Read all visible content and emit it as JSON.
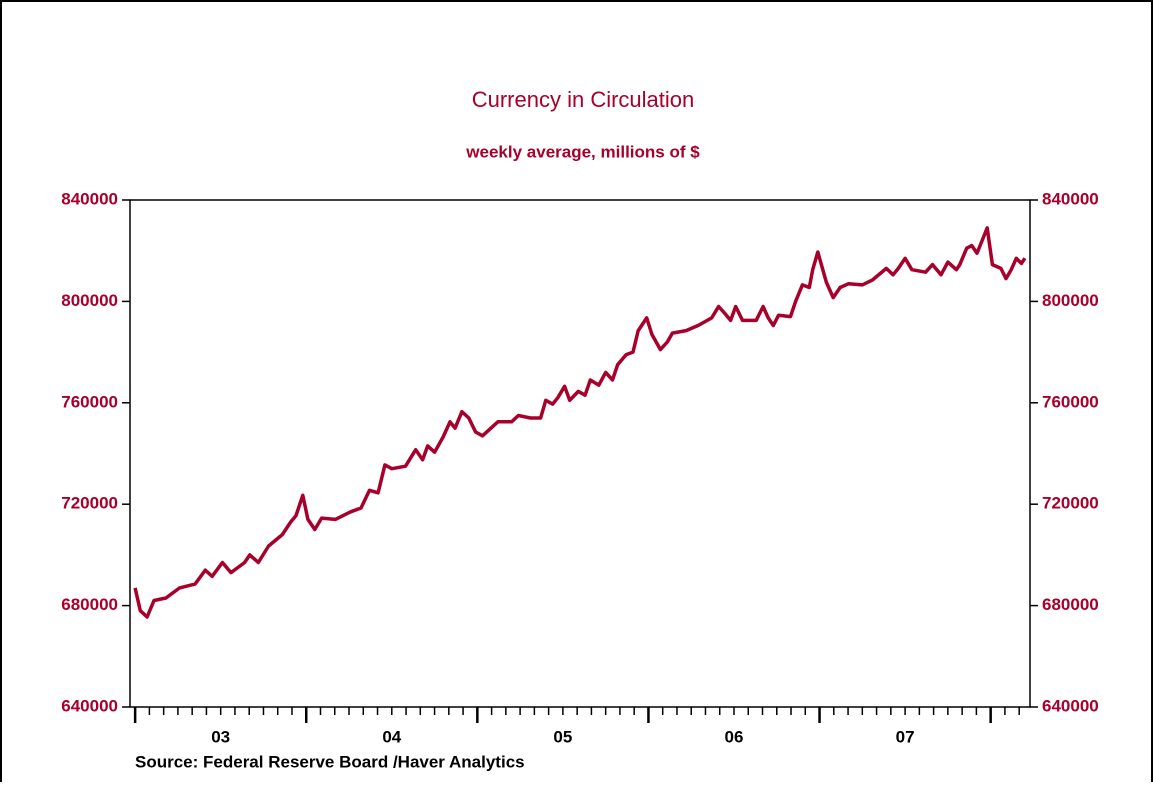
{
  "chart_data": {
    "type": "line",
    "title": "Currency in Circulation",
    "subtitle": "weekly average, millions of $",
    "source": "Source:  Federal Reserve Board /Haver Analytics",
    "color": "#a8002a",
    "xlim": [
      2002.97,
      2008.23
    ],
    "xticks": [
      {
        "value": 2003.5,
        "label": "03"
      },
      {
        "value": 2004.5,
        "label": "04"
      },
      {
        "value": 2005.5,
        "label": "05"
      },
      {
        "value": 2006.5,
        "label": "06"
      },
      {
        "value": 2007.5,
        "label": "07"
      }
    ],
    "ylim": [
      640000,
      840000
    ],
    "yticks": [
      640000,
      680000,
      720000,
      760000,
      800000,
      840000
    ],
    "y2lim": [
      640000,
      840000
    ],
    "y2ticks": [
      640000,
      680000,
      720000,
      760000,
      800000,
      840000
    ],
    "x": [
      2003.0,
      2003.03,
      2003.07,
      2003.11,
      2003.18,
      2003.26,
      2003.35,
      2003.41,
      2003.45,
      2003.51,
      2003.56,
      2003.64,
      2003.67,
      2003.72,
      2003.78,
      2003.86,
      2003.91,
      2003.94,
      2003.98,
      2004.01,
      2004.05,
      2004.09,
      2004.17,
      2004.26,
      2004.32,
      2004.37,
      2004.42,
      2004.46,
      2004.5,
      2004.58,
      2004.64,
      2004.68,
      2004.71,
      2004.75,
      2004.8,
      2004.84,
      2004.87,
      2004.91,
      2004.95,
      2004.99,
      2005.03,
      2005.08,
      2005.12,
      2005.2,
      2005.24,
      2005.31,
      2005.37,
      2005.4,
      2005.44,
      2005.47,
      2005.51,
      2005.54,
      2005.59,
      2005.63,
      2005.66,
      2005.71,
      2005.75,
      2005.79,
      2005.82,
      2005.87,
      2005.91,
      2005.94,
      2005.99,
      2006.02,
      2006.07,
      2006.11,
      2006.14,
      2006.22,
      2006.29,
      2006.37,
      2006.41,
      2006.45,
      2006.48,
      2006.51,
      2006.55,
      2006.63,
      2006.67,
      2006.7,
      2006.73,
      2006.76,
      2006.83,
      2006.86,
      2006.9,
      2006.94,
      2006.96,
      2006.99,
      2007.04,
      2007.08,
      2007.12,
      2007.17,
      2007.25,
      2007.31,
      2007.39,
      2007.43,
      2007.46,
      2007.5,
      2007.54,
      2007.62,
      2007.66,
      2007.71,
      2007.75,
      2007.8,
      2007.82,
      2007.86,
      2007.89,
      2007.92,
      2007.95,
      2007.98,
      2008.01,
      2008.06,
      2008.09,
      2008.12,
      2008.15,
      2008.18,
      2008.2
    ],
    "series": [
      {
        "name": "Currency in Circulation",
        "color": "#a8002a",
        "values": [
          687000,
          678000,
          675500,
          682000,
          683000,
          687000,
          688500,
          694000,
          691500,
          697000,
          693000,
          697000,
          700000,
          697000,
          703500,
          708000,
          713000,
          715500,
          723500,
          714000,
          710000,
          714500,
          714000,
          717000,
          718500,
          725500,
          724500,
          735500,
          734000,
          735000,
          741500,
          737500,
          743000,
          740500,
          746500,
          752500,
          750000,
          756500,
          754000,
          748500,
          747000,
          750000,
          752500,
          752500,
          755000,
          754000,
          754000,
          761000,
          759500,
          762000,
          766500,
          761000,
          764500,
          763000,
          769000,
          767000,
          772000,
          769000,
          775000,
          779000,
          780000,
          788500,
          793500,
          787000,
          781000,
          784000,
          787500,
          788500,
          790500,
          793500,
          798000,
          795000,
          792500,
          798000,
          792500,
          792500,
          798000,
          793500,
          790500,
          794500,
          794000,
          800000,
          806500,
          805500,
          812500,
          819500,
          807500,
          801500,
          805500,
          807000,
          806500,
          808500,
          813000,
          810500,
          813000,
          817000,
          812500,
          811500,
          814500,
          810500,
          815500,
          812500,
          814500,
          821000,
          822000,
          819000,
          824000,
          829000,
          814500,
          813000,
          809000,
          812500,
          817000,
          815000,
          817000
        ]
      }
    ]
  }
}
